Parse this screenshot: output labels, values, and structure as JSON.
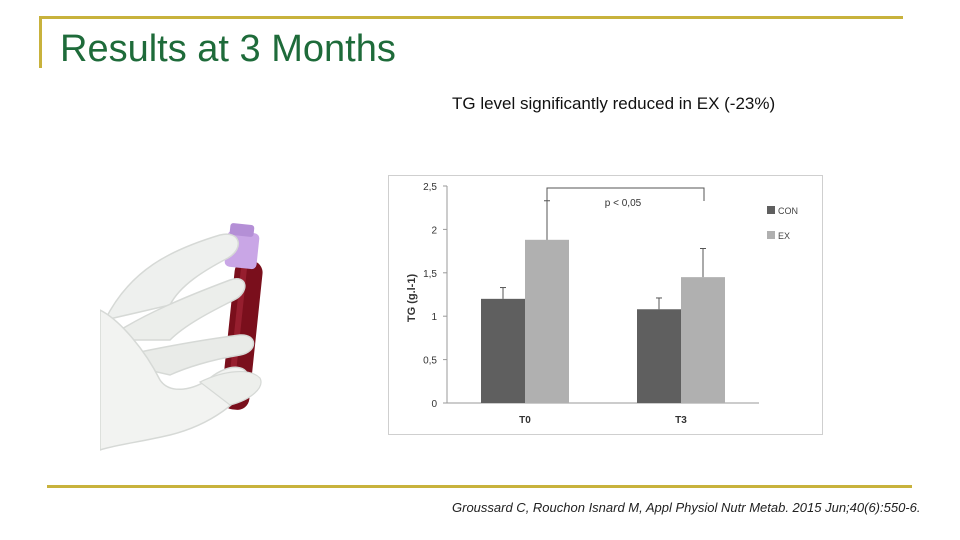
{
  "slide": {
    "title": "Results at 3 Months",
    "subtitle": "TG level significantly reduced in EX (-23%)",
    "citation": "Groussard C, Rouchon Isnard M, Appl Physiol Nutr Metab. 2015 Jun;40(6):550-6."
  },
  "colors": {
    "accent_rule": "#c8b23c",
    "title": "#1e6b3a",
    "con": "#5f5f5f",
    "ex": "#b0b0b0"
  },
  "icons": [
    "gloved-hand-blood-tube-image"
  ],
  "chart_data": {
    "type": "bar",
    "categories": [
      "T0",
      "T3"
    ],
    "series": [
      {
        "name": "CON",
        "values": [
          1.2,
          1.08
        ],
        "errors": [
          0.13,
          0.13
        ]
      },
      {
        "name": "EX",
        "values": [
          1.88,
          1.45
        ],
        "errors": [
          0.45,
          0.33
        ]
      }
    ],
    "ylabel": "TG (g.l-1)",
    "xlabel": "",
    "ylim": [
      0,
      2.5
    ],
    "yticks": [
      "0",
      "0,5",
      "1",
      "1,5",
      "2",
      "2,5"
    ],
    "ytick_values": [
      0,
      0.5,
      1,
      1.5,
      2,
      2.5
    ],
    "annotation": "p < 0,05",
    "legend_position": "right",
    "grid": false
  }
}
